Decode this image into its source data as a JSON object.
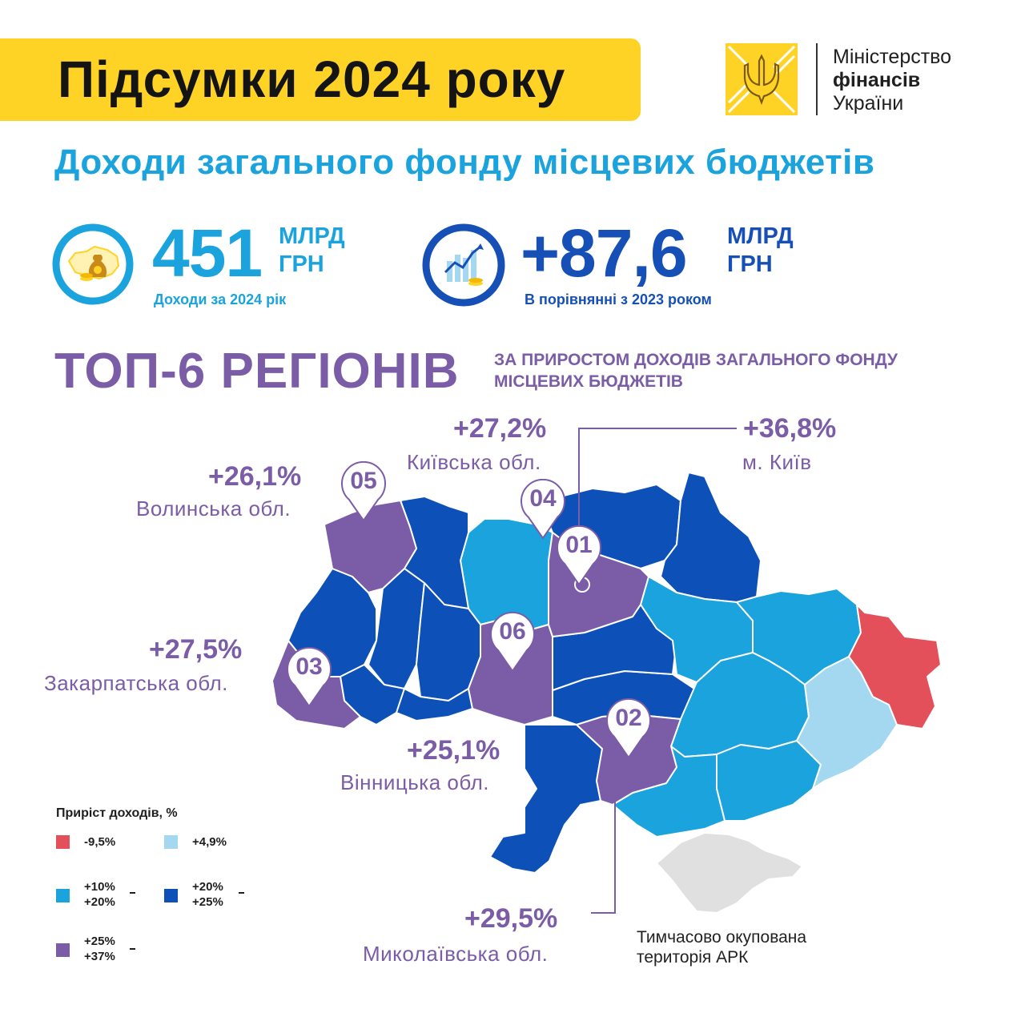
{
  "header": {
    "title": "Підсумки 2024 року",
    "ministry_lines": [
      "Міністерство",
      "фінансів",
      "України"
    ]
  },
  "subtitle": "Доходи загального фонду місцевих бюджетів",
  "stats": [
    {
      "value": "451",
      "unit_lines": [
        "МЛРД",
        "ГРН"
      ],
      "caption": "Доходи за 2024 рік",
      "icon": "money-bag-map-icon"
    },
    {
      "value": "+87,6",
      "unit_lines": [
        "МЛРД",
        "ГРН"
      ],
      "caption": "В порівнянні з 2023 роком",
      "icon": "growth-chart-icon"
    }
  ],
  "top_section": {
    "title": "ТОП-6 РЕГІОНІВ",
    "subtitle": "ЗА ПРИРОСТОМ ДОХОДІВ ЗАГАЛЬНОГО ФОНДУ МІСЦЕВИХ БЮДЖЕТІВ"
  },
  "regions": [
    {
      "rank": "01",
      "growth": "+36,8%",
      "name": "м. Київ"
    },
    {
      "rank": "02",
      "growth": "+29,5%",
      "name": "Миколаївська обл."
    },
    {
      "rank": "03",
      "growth": "+27,5%",
      "name": "Закарпатська обл."
    },
    {
      "rank": "04",
      "growth": "+27,2%",
      "name": "Київська обл."
    },
    {
      "rank": "05",
      "growth": "+26,1%",
      "name": "Волинська обл."
    },
    {
      "rank": "06",
      "growth": "+25,1%",
      "name": "Вінницька обл."
    }
  ],
  "legend": {
    "title": "Приріст доходів, %",
    "items": [
      {
        "label": "-9,5%",
        "color": "#e4505a"
      },
      {
        "label": "+4,9%",
        "color": "#a3d8f0"
      },
      {
        "label": "+10% – +20%",
        "lines": [
          "+10%",
          "+20%"
        ],
        "color": "#1aa3dc"
      },
      {
        "label": "+20% – +25%",
        "lines": [
          "+20%",
          "+25%"
        ],
        "color": "#0d50b8"
      },
      {
        "label": "+25% – +37%",
        "lines": [
          "+25%",
          "+37%"
        ],
        "color": "#7a5ca7"
      }
    ]
  },
  "occupied_note": [
    "Тимчасово окупована",
    "територія АРК"
  ],
  "colors": {
    "yellow": "#ffd326",
    "light_blue": "#1aa3dc",
    "dark_blue": "#0d50b8",
    "purple": "#7a5ca7",
    "red": "#e4505a",
    "pale_blue": "#a3d8f0",
    "grey": "#e0e0e0"
  }
}
